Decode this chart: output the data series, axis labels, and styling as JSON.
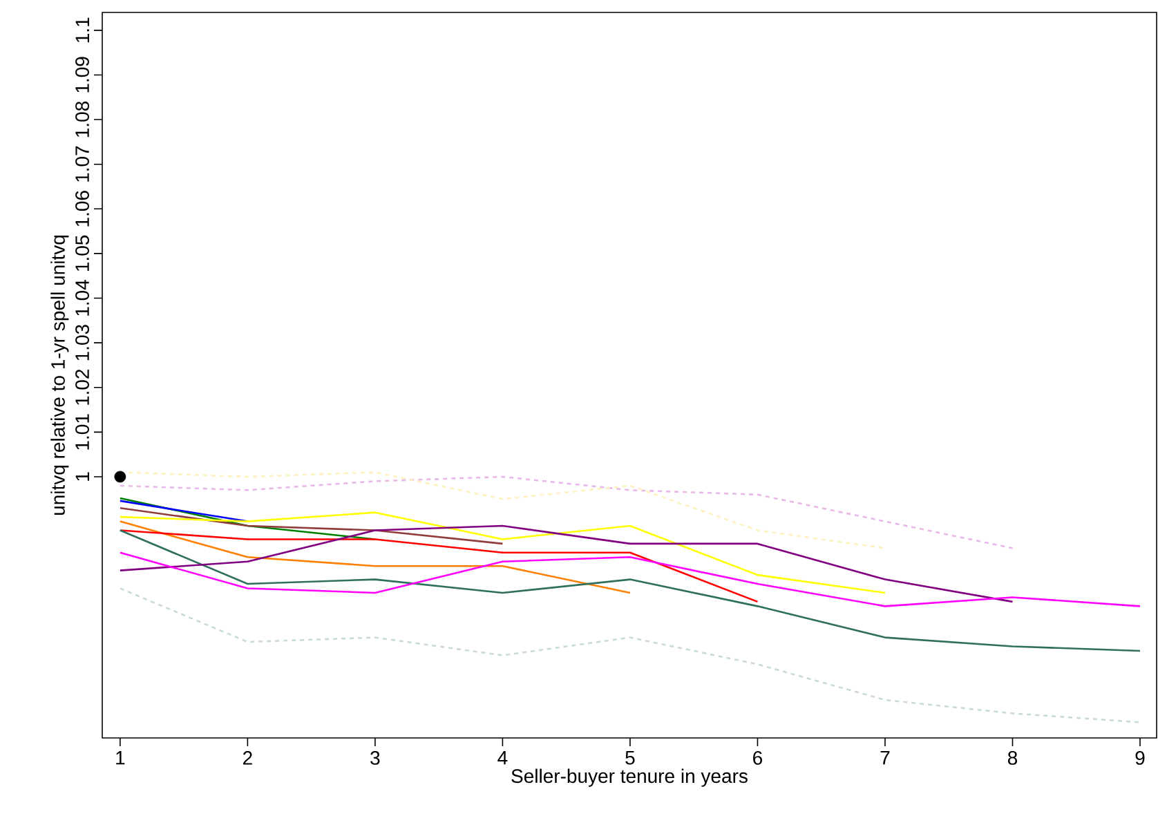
{
  "chart_data": {
    "type": "line",
    "xlabel": "Seller-buyer tenure in years",
    "ylabel": "unitvq relative to 1-yr spell unitvq",
    "xlim": [
      0.86,
      9.13
    ],
    "ylim": [
      0.9415,
      1.104
    ],
    "xticks": [
      1,
      2,
      3,
      4,
      5,
      6,
      7,
      8,
      9
    ],
    "yticks": [
      1,
      1.01,
      1.02,
      1.03,
      1.04,
      1.05,
      1.06,
      1.07,
      1.08,
      1.09,
      1.1
    ],
    "grid": false,
    "marker": "none",
    "series": [
      {
        "color": "#e8b8e8",
        "line_style": "dashed",
        "x": [
          1,
          2,
          3,
          4,
          5,
          6,
          7,
          8
        ],
        "values": [
          0.998,
          0.997,
          0.999,
          1.0,
          0.997,
          0.996,
          0.99,
          0.984
        ]
      },
      {
        "color": "#fff0c0",
        "line_style": "dashed",
        "x": [
          1,
          2,
          3,
          4,
          5,
          6,
          7
        ],
        "values": [
          1.001,
          1.0,
          1.001,
          0.995,
          0.998,
          0.988,
          0.984
        ]
      },
      {
        "color": "#c8dcd0",
        "line_style": "dashed",
        "x": [
          1,
          2,
          3,
          4,
          5,
          6,
          7,
          8,
          9
        ],
        "values": [
          0.975,
          0.963,
          0.964,
          0.96,
          0.964,
          0.958,
          0.95,
          0.947,
          0.945
        ]
      },
      {
        "color": "#008000",
        "line_style": "solid",
        "x": [
          1,
          2,
          3
        ],
        "values": [
          0.9952,
          0.989,
          0.986
        ]
      },
      {
        "color": "#0000ff",
        "line_style": "solid",
        "x": [
          1,
          2
        ],
        "values": [
          0.9946,
          0.99
        ]
      },
      {
        "color": "#903c3c",
        "line_style": "solid",
        "x": [
          1,
          2,
          3,
          4
        ],
        "values": [
          0.993,
          0.989,
          0.988,
          0.985
        ]
      },
      {
        "color": "#ffff00",
        "line_style": "solid",
        "x": [
          1,
          2,
          3,
          4,
          5,
          6,
          7
        ],
        "values": [
          0.991,
          0.99,
          0.992,
          0.986,
          0.989,
          0.978,
          0.974
        ]
      },
      {
        "color": "#ff7f00",
        "line_style": "solid",
        "x": [
          1,
          2,
          3,
          4,
          5
        ],
        "values": [
          0.99,
          0.982,
          0.98,
          0.98,
          0.974
        ]
      },
      {
        "color": "#ff0000",
        "line_style": "solid",
        "x": [
          1,
          2,
          3,
          4,
          5,
          6
        ],
        "values": [
          0.988,
          0.986,
          0.986,
          0.983,
          0.983,
          0.972
        ]
      },
      {
        "color": "#2f6f5f",
        "line_style": "solid",
        "x": [
          1,
          2,
          3,
          4,
          5,
          6,
          7,
          8,
          9
        ],
        "values": [
          0.988,
          0.976,
          0.977,
          0.974,
          0.977,
          0.971,
          0.964,
          0.962,
          0.961
        ]
      },
      {
        "color": "#800080",
        "line_style": "solid",
        "x": [
          1,
          2,
          3,
          4,
          5,
          6,
          7,
          8
        ],
        "values": [
          0.979,
          0.981,
          0.988,
          0.989,
          0.985,
          0.985,
          0.977,
          0.972
        ]
      },
      {
        "color": "#ff00ff",
        "line_style": "solid",
        "x": [
          1,
          2,
          3,
          4,
          5,
          6,
          7,
          8,
          9
        ],
        "values": [
          0.983,
          0.975,
          0.974,
          0.981,
          0.982,
          0.976,
          0.971,
          0.973,
          0.971
        ]
      },
      {
        "type": "scatter",
        "marker": "circle",
        "color": "#000000",
        "x": [
          1
        ],
        "values": [
          1
        ]
      }
    ]
  }
}
